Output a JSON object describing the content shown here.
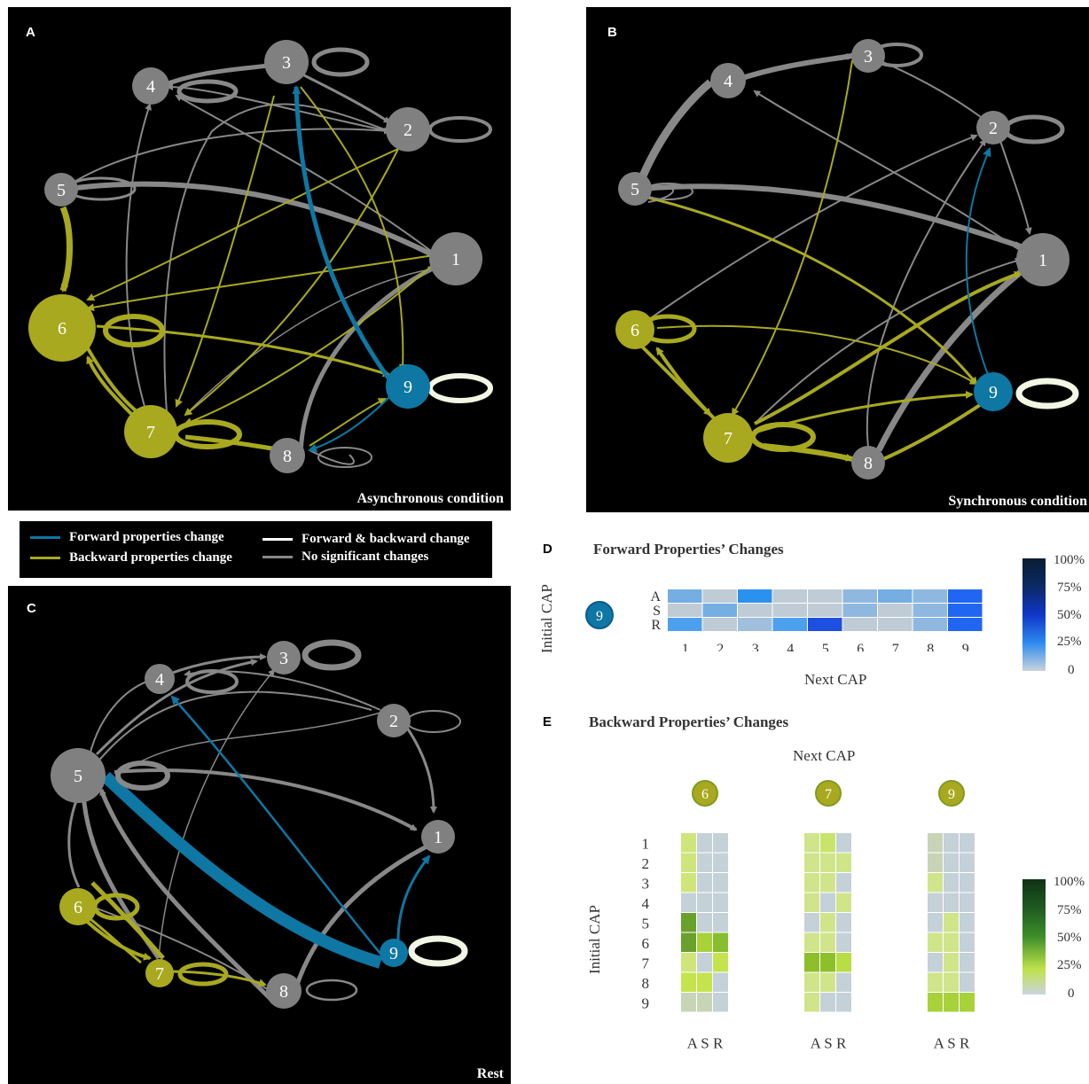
{
  "panels": {
    "A": {
      "label": "A",
      "condition": "Asynchronous condition"
    },
    "B": {
      "label": "B",
      "condition": "Synchronous condition"
    },
    "C": {
      "label": "C",
      "condition": "Rest"
    },
    "D": {
      "label": "D",
      "title": "Forward Properties’ Changes"
    },
    "E": {
      "label": "E",
      "title": "Backward Properties’ Changes"
    }
  },
  "legend": {
    "forward": "Forward properties change",
    "backward": "Backward properties change",
    "both": "Forward & backward change",
    "none": "No significant changes"
  },
  "colors": {
    "forward": "#0e77a3",
    "backward": "#a8a91f",
    "both": "#f2f6e4",
    "none": "#888888",
    "node_gray": "#808080"
  },
  "heatmap_d": {
    "ylabel": "Initial CAP",
    "xlabel": "Next CAP",
    "node": "9",
    "rows": [
      "A",
      "S",
      "R"
    ],
    "cols": [
      "1",
      "2",
      "3",
      "4",
      "5",
      "6",
      "7",
      "8",
      "9"
    ],
    "scale": [
      "100%",
      "75%",
      "50%",
      "25%",
      "0"
    ]
  },
  "heatmap_e": {
    "ylabel": "Initial CAP",
    "xlabel": "Next CAP",
    "nodes": [
      "6",
      "7",
      "9"
    ],
    "rows": [
      "1",
      "2",
      "3",
      "4",
      "5",
      "6",
      "7",
      "8",
      "9"
    ],
    "cols_label": "A S R",
    "scale": [
      "100%",
      "75%",
      "50%",
      "25%",
      "0"
    ]
  }
}
